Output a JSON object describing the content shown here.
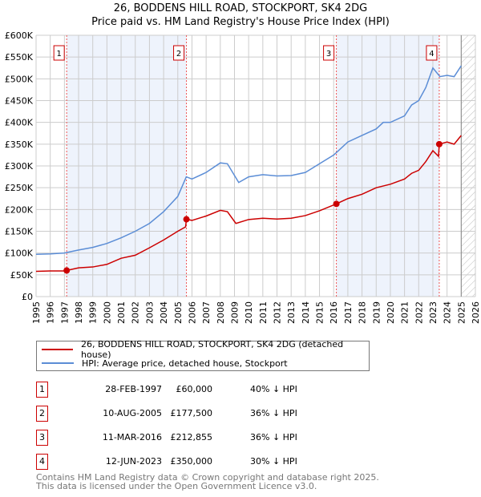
{
  "chart_data": {
    "type": "line",
    "title": "26, BODDENS HILL ROAD, STOCKPORT, SK4 2DG",
    "subtitle": "Price paid vs. HM Land Registry's House Price Index (HPI)",
    "xlim": [
      1995,
      2026
    ],
    "ylim": [
      0,
      600000
    ],
    "x_ticks": [
      "1995",
      "1996",
      "1997",
      "1998",
      "1999",
      "2000",
      "2001",
      "2002",
      "2003",
      "2004",
      "2005",
      "2006",
      "2007",
      "2008",
      "2009",
      "2010",
      "2011",
      "2012",
      "2013",
      "2014",
      "2015",
      "2016",
      "2017",
      "2018",
      "2019",
      "2020",
      "2021",
      "2022",
      "2023",
      "2024",
      "2025",
      "2026"
    ],
    "y_ticks": [
      {
        "v": 0,
        "label": "£0"
      },
      {
        "v": 50000,
        "label": "£50K"
      },
      {
        "v": 100000,
        "label": "£100K"
      },
      {
        "v": 150000,
        "label": "£150K"
      },
      {
        "v": 200000,
        "label": "£200K"
      },
      {
        "v": 250000,
        "label": "£250K"
      },
      {
        "v": 300000,
        "label": "£300K"
      },
      {
        "v": 350000,
        "label": "£350K"
      },
      {
        "v": 400000,
        "label": "£400K"
      },
      {
        "v": 450000,
        "label": "£450K"
      },
      {
        "v": 500000,
        "label": "£500K"
      },
      {
        "v": 550000,
        "label": "£550K"
      },
      {
        "v": 600000,
        "label": "£600K"
      }
    ],
    "grid": true,
    "forecast_from": 2025,
    "series": [
      {
        "name": "26, BODDENS HILL ROAD, STOCKPORT, SK4 2DG (detached house)",
        "color": "#cc0000",
        "x": [
          1995,
          1996,
          1997,
          1997.16,
          1998,
          1999,
          2000,
          2001,
          2002,
          2003,
          2004,
          2005,
          2005.55,
          2005.61,
          2006,
          2007,
          2008,
          2008.5,
          2009.1,
          2010,
          2011,
          2012,
          2013,
          2014,
          2015,
          2016.19,
          2017,
          2018,
          2019,
          2020,
          2021,
          2021.5,
          2022,
          2022.5,
          2023,
          2023.4,
          2023.45,
          2024,
          2024.5,
          2025
        ],
        "y": [
          58000,
          59000,
          59000,
          60000,
          66000,
          68000,
          74000,
          88000,
          95000,
          112000,
          130000,
          150000,
          160000,
          177500,
          175000,
          185000,
          198000,
          195000,
          168000,
          177000,
          180000,
          178000,
          180000,
          186000,
          197000,
          212855,
          225000,
          235000,
          250000,
          258000,
          270000,
          283000,
          290000,
          310000,
          335000,
          322000,
          350000,
          355000,
          350000,
          370000
        ]
      },
      {
        "name": "HPI: Average price, detached house, Stockport",
        "color": "#5b8dd6",
        "x": [
          1995,
          1996,
          1997,
          1998,
          1999,
          2000,
          2001,
          2002,
          2003,
          2004,
          2005,
          2005.6,
          2006,
          2007,
          2008,
          2008.5,
          2009.3,
          2010,
          2011,
          2012,
          2013,
          2014,
          2015,
          2016,
          2016.5,
          2017,
          2018,
          2019,
          2019.5,
          2020,
          2021,
          2021.5,
          2022,
          2022.5,
          2023,
          2023.5,
          2024,
          2024.5,
          2025
        ],
        "y": [
          97000,
          98000,
          100000,
          107000,
          113000,
          122000,
          135000,
          150000,
          168000,
          195000,
          230000,
          275000,
          270000,
          285000,
          307000,
          305000,
          262000,
          275000,
          280000,
          277000,
          278000,
          285000,
          305000,
          325000,
          340000,
          355000,
          370000,
          385000,
          400000,
          400000,
          415000,
          440000,
          450000,
          480000,
          525000,
          505000,
          508000,
          505000,
          530000
        ]
      }
    ],
    "sales": [
      {
        "n": "1",
        "date": "28-FEB-1997",
        "x": 1997.16,
        "price": "£60,000",
        "value": 60000,
        "hpi": "40% ↓ HPI"
      },
      {
        "n": "2",
        "date": "10-AUG-2005",
        "x": 2005.61,
        "price": "£177,500",
        "value": 177500,
        "hpi": "36% ↓ HPI"
      },
      {
        "n": "3",
        "date": "11-MAR-2016",
        "x": 2016.19,
        "price": "£212,855",
        "value": 212855,
        "hpi": "36% ↓ HPI"
      },
      {
        "n": "4",
        "date": "12-JUN-2023",
        "x": 2023.45,
        "price": "£350,000",
        "value": 350000,
        "hpi": "30% ↓ HPI"
      }
    ],
    "shaded_ranges": [
      [
        1997.16,
        2005.61
      ],
      [
        2016.19,
        2023.45
      ]
    ]
  },
  "footer": {
    "line1": "Contains HM Land Registry data © Crown copyright and database right 2025.",
    "line2": "This data is licensed under the Open Government Licence v3.0."
  }
}
